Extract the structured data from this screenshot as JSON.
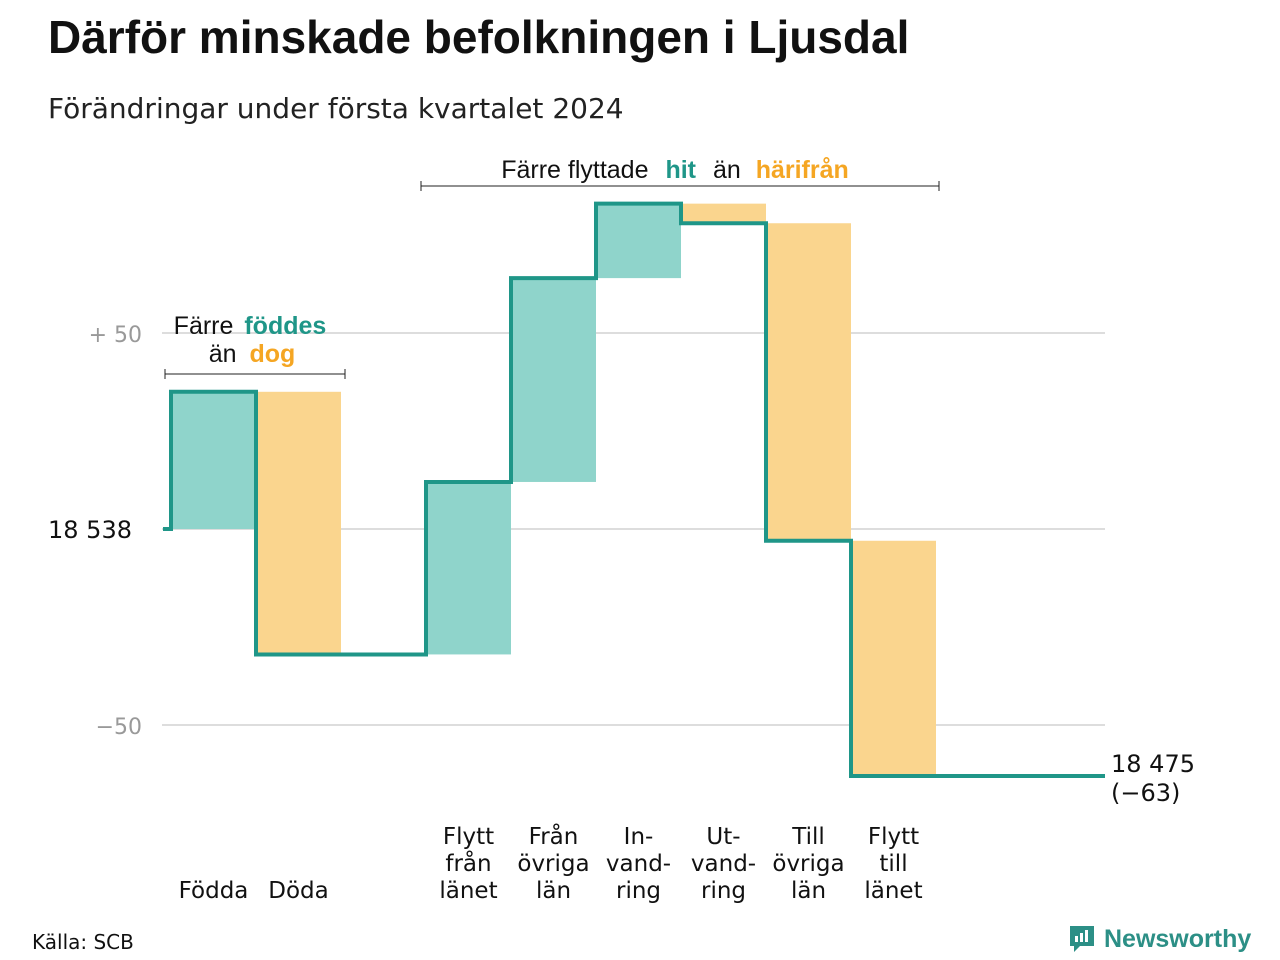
{
  "title": "Därför minskade befolkningen i Ljusdal",
  "subtitle": "Förändringar under första kvartalet 2024",
  "source": "Källa: SCB",
  "brand": {
    "name": "Newsworthy",
    "logo_icon": "bar-chart-speech-bubble-icon"
  },
  "colors": {
    "increase": "#8fd4cb",
    "decrease": "#fad58e",
    "line": "#1f9688",
    "teal_text": "#1f9688",
    "orange_text": "#f5a623",
    "grid": "#dddddd"
  },
  "annotations": {
    "births_deaths": {
      "line1_prefix": "Färre",
      "line1_highlight": "föddes",
      "line2_prefix": "än",
      "line2_highlight": "dog"
    },
    "migration": {
      "prefix": "Färre flyttade",
      "highlight1": "hit",
      "middle": "än",
      "highlight2": "härifrån"
    }
  },
  "start_label": "18  538",
  "end_label": {
    "line1": "18 475",
    "line2": "(−63)"
  },
  "chart_data": {
    "type": "waterfall",
    "title": "Därför minskade befolkningen i Ljusdal",
    "subtitle": "Förändringar under första kvartalet 2024",
    "start_value": 18538,
    "end_value": 18475,
    "net_change": -63,
    "y_ticks": [
      {
        "value": 50,
        "label": "+  50"
      },
      {
        "value": 0,
        "label": "18  538"
      },
      {
        "value": -50,
        "label": "−50"
      }
    ],
    "ylim": [
      -75,
      90
    ],
    "grid": true,
    "categories": [
      {
        "label": [
          "Födda"
        ],
        "value": 35,
        "kind": "increase"
      },
      {
        "label": [
          "Döda"
        ],
        "value": -67,
        "kind": "decrease"
      },
      {
        "label": [],
        "value": 0,
        "kind": "spacer"
      },
      {
        "label": [
          "Flytt",
          "från",
          "länet"
        ],
        "value": 44,
        "kind": "increase"
      },
      {
        "label": [
          "Från",
          "övriga",
          "län"
        ],
        "value": 52,
        "kind": "increase"
      },
      {
        "label": [
          "In-",
          "vand-",
          "ring"
        ],
        "value": 19,
        "kind": "increase"
      },
      {
        "label": [
          "Ut-",
          "vand-",
          "ring"
        ],
        "value": -5,
        "kind": "decrease"
      },
      {
        "label": [
          "Till",
          "övriga",
          "län"
        ],
        "value": -81,
        "kind": "decrease"
      },
      {
        "label": [
          "Flytt",
          "till",
          "länet"
        ],
        "value": -60,
        "kind": "decrease"
      },
      {
        "label": [],
        "value": 0,
        "kind": "end"
      }
    ]
  }
}
